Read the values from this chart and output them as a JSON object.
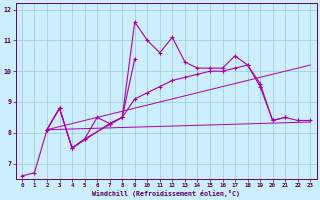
{
  "xlabel": "Windchill (Refroidissement éolien,°C)",
  "xlim": [
    -0.5,
    23.5
  ],
  "ylim": [
    6.5,
    12.2
  ],
  "yticks": [
    7,
    8,
    9,
    10,
    11,
    12
  ],
  "xticks": [
    0,
    1,
    2,
    3,
    4,
    5,
    6,
    7,
    8,
    9,
    10,
    11,
    12,
    13,
    14,
    15,
    16,
    17,
    18,
    19,
    20,
    21,
    22,
    23
  ],
  "bg_color": "#cceeff",
  "grid_color": "#99cccc",
  "line_color": "#aa00aa",
  "series1_x": [
    0,
    1,
    2,
    3,
    4,
    5,
    6,
    7,
    8,
    9,
    10,
    11,
    12,
    13,
    14,
    15,
    16,
    17,
    18,
    19,
    20,
    21
  ],
  "series1_y": [
    6.6,
    6.7,
    8.1,
    8.8,
    7.5,
    7.8,
    8.5,
    8.3,
    8.5,
    11.6,
    11.0,
    10.6,
    11.1,
    10.3,
    10.1,
    10.1,
    10.1,
    10.5,
    10.2,
    9.5,
    8.4,
    8.5
  ],
  "series2_x": [
    2,
    3,
    4,
    7,
    8,
    9,
    10,
    11,
    12,
    13,
    14,
    15,
    16,
    17,
    18,
    19,
    20,
    21,
    22,
    23
  ],
  "series2_y": [
    8.1,
    8.8,
    7.5,
    8.3,
    8.5,
    9.1,
    9.3,
    9.5,
    9.7,
    9.8,
    9.9,
    10.0,
    10.0,
    10.1,
    10.2,
    9.6,
    8.4,
    8.5,
    8.4,
    8.4
  ],
  "series3_x": [
    2,
    23
  ],
  "series3_y": [
    8.1,
    8.35
  ],
  "series4_x": [
    2,
    23
  ],
  "series4_y": [
    8.1,
    10.2
  ],
  "series5_x": [
    2,
    3,
    4,
    5,
    8,
    9
  ],
  "series5_y": [
    8.1,
    8.8,
    7.5,
    7.8,
    8.5,
    10.4
  ]
}
